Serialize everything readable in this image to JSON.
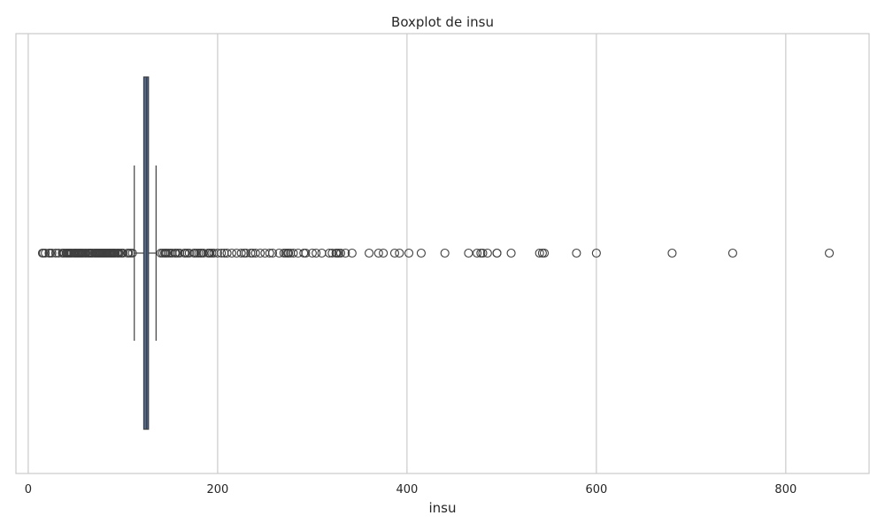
{
  "chart_data": {
    "type": "boxplot",
    "title": "Boxplot de insu",
    "xlabel": "insu",
    "ylabel": "",
    "xlim": [
      -13,
      888
    ],
    "xticks": [
      0,
      200,
      400,
      600,
      800
    ],
    "grid": true,
    "box": {
      "whisker_low": 112,
      "q1": 122,
      "median": 125,
      "q3": 127,
      "whisker_high": 135
    },
    "outliers": [
      15,
      16,
      18,
      22,
      23,
      25,
      29,
      32,
      36,
      37,
      38,
      40,
      41,
      42,
      43,
      44,
      45,
      46,
      48,
      49,
      50,
      51,
      52,
      53,
      54,
      55,
      56,
      57,
      58,
      60,
      61,
      63,
      64,
      65,
      66,
      67,
      68,
      70,
      71,
      72,
      73,
      74,
      75,
      76,
      77,
      78,
      79,
      80,
      81,
      82,
      83,
      84,
      85,
      86,
      87,
      88,
      89,
      90,
      91,
      92,
      94,
      95,
      96,
      98,
      99,
      100,
      105,
      106,
      108,
      110,
      140,
      142,
      144,
      145,
      146,
      148,
      150,
      152,
      155,
      156,
      158,
      160,
      165,
      166,
      168,
      170,
      175,
      176,
      178,
      180,
      182,
      183,
      185,
      190,
      191,
      192,
      194,
      196,
      200,
      204,
      207,
      210,
      215,
      220,
      225,
      228,
      230,
      235,
      237,
      240,
      245,
      250,
      255,
      258,
      265,
      270,
      272,
      274,
      275,
      277,
      280,
      285,
      291,
      293,
      300,
      304,
      310,
      318,
      321,
      325,
      326,
      328,
      330,
      335,
      342,
      360,
      370,
      375,
      387,
      392,
      402,
      415,
      440,
      465,
      474,
      478,
      480,
      485,
      495,
      495,
      510,
      540,
      543,
      545,
      579,
      600,
      680,
      744,
      846
    ]
  }
}
